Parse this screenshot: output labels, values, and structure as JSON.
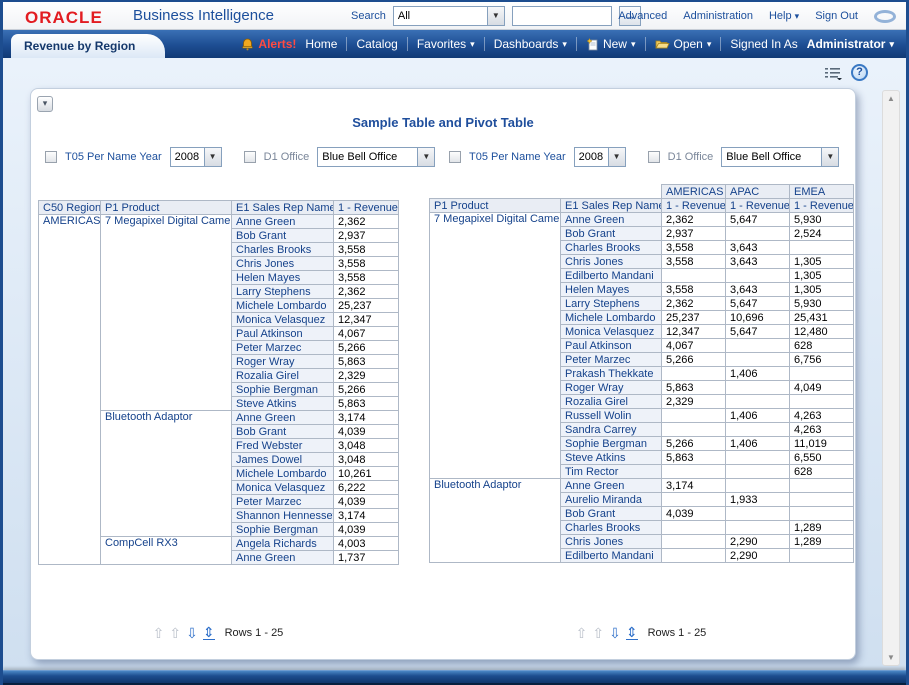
{
  "header": {
    "logo": "ORACLE",
    "product_name": "Business Intelligence",
    "search_label": "Search",
    "search_scope_value": "All",
    "search_input_value": "",
    "go_glyph": "→",
    "links": {
      "advanced": "Advanced",
      "administration": "Administration",
      "help": "Help",
      "sign_out": "Sign Out"
    }
  },
  "navbar": {
    "active_tab": "Revenue by Region",
    "alerts_label": "Alerts!",
    "home": "Home",
    "catalog": "Catalog",
    "favorites": "Favorites",
    "dashboards": "Dashboards",
    "new_label": "New",
    "open_label": "Open",
    "signed_in_as": "Signed In As",
    "user_name": "Administrator"
  },
  "content": {
    "title": "Sample Table and Pivot Table",
    "rows_label": "Rows 1 - 25",
    "prompt_left": {
      "year_label": "T05 Per Name Year",
      "year_value": "2008",
      "office_label": "D1 Office",
      "office_value": "Blue Bell Office"
    },
    "prompt_right": {
      "year_label": "T05 Per Name Year",
      "year_value": "2008",
      "office_label": "D1 Office",
      "office_value": "Blue Bell Office"
    }
  },
  "left_table": {
    "headers": [
      "C50 Region",
      "P1 Product",
      "E1 Sales Rep Name",
      "1 - Revenue"
    ],
    "region": "AMERICAS",
    "groups": [
      {
        "product": "7 Megapixel Digital Camer",
        "rows": [
          [
            "Anne Green",
            "2,362"
          ],
          [
            "Bob Grant",
            "2,937"
          ],
          [
            "Charles Brooks",
            "3,558"
          ],
          [
            "Chris Jones",
            "3,558"
          ],
          [
            "Helen Mayes",
            "3,558"
          ],
          [
            "Larry Stephens",
            "2,362"
          ],
          [
            "Michele Lombardo",
            "25,237"
          ],
          [
            "Monica Velasquez",
            "12,347"
          ],
          [
            "Paul Atkinson",
            "4,067"
          ],
          [
            "Peter Marzec",
            "5,266"
          ],
          [
            "Roger Wray",
            "5,863"
          ],
          [
            "Rozalia Girel",
            "2,329"
          ],
          [
            "Sophie Bergman",
            "5,266"
          ],
          [
            "Steve Atkins",
            "5,863"
          ]
        ]
      },
      {
        "product": "Bluetooth Adaptor",
        "rows": [
          [
            "Anne Green",
            "3,174"
          ],
          [
            "Bob Grant",
            "4,039"
          ],
          [
            "Fred Webster",
            "3,048"
          ],
          [
            "James Dowel",
            "3,048"
          ],
          [
            "Michele Lombardo",
            "10,261"
          ],
          [
            "Monica Velasquez",
            "6,222"
          ],
          [
            "Peter Marzec",
            "4,039"
          ],
          [
            "Shannon Hennessey",
            "3,174"
          ],
          [
            "Sophie Bergman",
            "4,039"
          ]
        ]
      },
      {
        "product": "CompCell RX3",
        "rows": [
          [
            "Angela Richards",
            "4,003"
          ],
          [
            "Anne Green",
            "1,737"
          ]
        ]
      }
    ]
  },
  "pivot_table": {
    "col_groups": [
      "AMERICAS",
      "APAC",
      "EMEA"
    ],
    "headers": [
      "P1 Product",
      "E1 Sales Rep Name",
      "1 - Revenue",
      "1 - Revenue",
      "1 - Revenue"
    ],
    "groups": [
      {
        "product": "7 Megapixel Digital Camer",
        "rows": [
          [
            "Anne Green",
            "2,362",
            "5,647",
            "5,930"
          ],
          [
            "Bob Grant",
            "2,937",
            "",
            "2,524"
          ],
          [
            "Charles Brooks",
            "3,558",
            "3,643",
            ""
          ],
          [
            "Chris Jones",
            "3,558",
            "3,643",
            "1,305"
          ],
          [
            "Edilberto Mandani",
            "",
            "",
            "1,305"
          ],
          [
            "Helen Mayes",
            "3,558",
            "3,643",
            "1,305"
          ],
          [
            "Larry Stephens",
            "2,362",
            "5,647",
            "5,930"
          ],
          [
            "Michele Lombardo",
            "25,237",
            "10,696",
            "25,431"
          ],
          [
            "Monica Velasquez",
            "12,347",
            "5,647",
            "12,480"
          ],
          [
            "Paul Atkinson",
            "4,067",
            "",
            "628"
          ],
          [
            "Peter Marzec",
            "5,266",
            "",
            "6,756"
          ],
          [
            "Prakash Thekkate",
            "",
            "1,406",
            ""
          ],
          [
            "Roger Wray",
            "5,863",
            "",
            "4,049"
          ],
          [
            "Rozalia Girel",
            "2,329",
            "",
            ""
          ],
          [
            "Russell Wolin",
            "",
            "1,406",
            "4,263"
          ],
          [
            "Sandra Carrey",
            "",
            "",
            "4,263"
          ],
          [
            "Sophie Bergman",
            "5,266",
            "1,406",
            "11,019"
          ],
          [
            "Steve Atkins",
            "5,863",
            "",
            "6,550"
          ],
          [
            "Tim Rector",
            "",
            "",
            "628"
          ]
        ]
      },
      {
        "product": "Bluetooth Adaptor",
        "rows": [
          [
            "Anne Green",
            "3,174",
            "",
            ""
          ],
          [
            "Aurelio Miranda",
            "",
            "1,933",
            ""
          ],
          [
            "Bob Grant",
            "4,039",
            "",
            ""
          ],
          [
            "Charles Brooks",
            "",
            "",
            "1,289"
          ],
          [
            "Chris Jones",
            "",
            "2,290",
            "1,289"
          ],
          [
            "Edilberto Mandani",
            "",
            "2,290",
            ""
          ]
        ]
      }
    ]
  },
  "colors": {
    "accent_blue": "#1c4f9c",
    "navy_bar": "#1d4d92",
    "oracle_red": "#e21c21",
    "alerts_red": "#ff4a42",
    "header_cell_bg": "#e9edf4",
    "name_cell_bg": "#eef2f9"
  },
  "icons": {
    "dropdown": "chevron-down",
    "bell": "alerts-bell",
    "new_doc": "new-document",
    "folder": "open-folder",
    "help": "question-mark",
    "options": "page-options"
  }
}
